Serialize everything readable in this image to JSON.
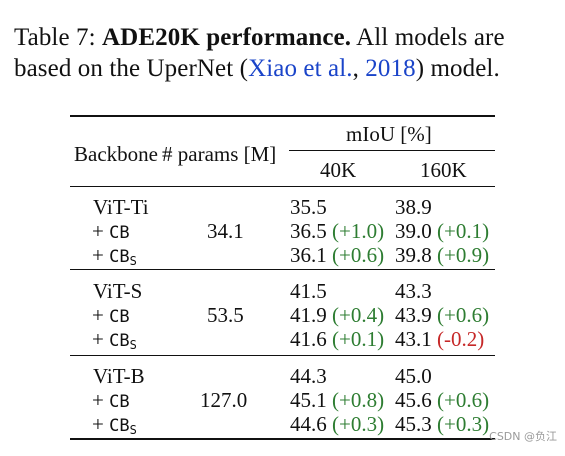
{
  "caption": {
    "label": "Table 7:",
    "title": "ADE20K performance.",
    "text1": "All models are based on the UperNet (",
    "citation_author": "Xiao et al.",
    "comma": ", ",
    "citation_year": "2018",
    "text2": ") model."
  },
  "table": {
    "headers": {
      "backbone": "Backbone",
      "params": "# params [M]",
      "miou": "mIoU [%]",
      "col_40k": "40K",
      "col_160k": "160K"
    },
    "groups": [
      {
        "backbone": "ViT-Ti",
        "params": "34.1",
        "rows": [
          {
            "prefix": "",
            "mono": "",
            "subscript": "",
            "v40k": "35.5",
            "d40k": "",
            "v160k": "38.9",
            "d160k": ""
          },
          {
            "prefix": "+ ",
            "mono": "CB",
            "subscript": "",
            "v40k": "36.5",
            "d40k": "(+1.0)",
            "v160k": "39.0",
            "d160k": "(+0.1)"
          },
          {
            "prefix": "+ ",
            "mono": "CB",
            "subscript": "S",
            "v40k": "36.1",
            "d40k": "(+0.6)",
            "v160k": "39.8",
            "d160k": "(+0.9)"
          }
        ]
      },
      {
        "backbone": "ViT-S",
        "params": "53.5",
        "rows": [
          {
            "prefix": "",
            "mono": "",
            "subscript": "",
            "v40k": "41.5",
            "d40k": "",
            "v160k": "43.3",
            "d160k": ""
          },
          {
            "prefix": "+ ",
            "mono": "CB",
            "subscript": "",
            "v40k": "41.9",
            "d40k": "(+0.4)",
            "v160k": "43.9",
            "d160k": "(+0.6)"
          },
          {
            "prefix": "+ ",
            "mono": "CB",
            "subscript": "S",
            "v40k": "41.6",
            "d40k": "(+0.1)",
            "v160k": "43.1",
            "d160k": "(-0.2)"
          }
        ]
      },
      {
        "backbone": "ViT-B",
        "params": "127.0",
        "rows": [
          {
            "prefix": "",
            "mono": "",
            "subscript": "",
            "v40k": "44.3",
            "d40k": "",
            "v160k": "45.0",
            "d160k": ""
          },
          {
            "prefix": "+ ",
            "mono": "CB",
            "subscript": "",
            "v40k": "45.1",
            "d40k": "(+0.8)",
            "v160k": "45.6",
            "d160k": "(+0.6)"
          },
          {
            "prefix": "+ ",
            "mono": "CB",
            "subscript": "S",
            "v40k": "44.6",
            "d40k": "(+0.3)",
            "v160k": "45.3",
            "d160k": "(+0.3)"
          }
        ]
      }
    ]
  },
  "colors": {
    "positive": "#2e7d32",
    "negative": "#c62828",
    "link": "#1a44c9"
  },
  "watermark": "CSDN @负江"
}
